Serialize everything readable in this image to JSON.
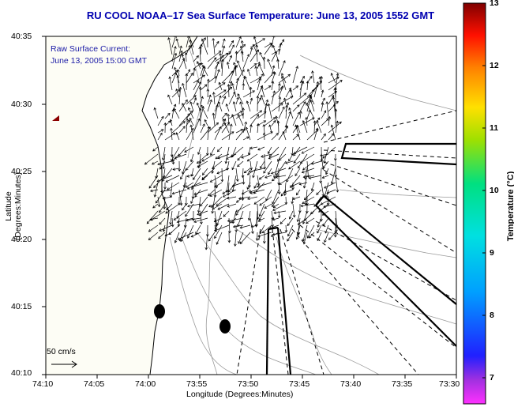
{
  "title": "RU COOL  NOAA–17  Sea Surface Temperature:  June 13, 2005 1552 GMT",
  "annotation": {
    "line1": "Raw Surface Current:",
    "line2": "June 13, 2005 15:00 GMT"
  },
  "axes": {
    "xlabel": "Longitude (Degrees:Minutes)",
    "ylabel": "Latitude (Degrees:Minutes)",
    "x_ticks": [
      "74:10",
      "74:05",
      "74:00",
      "73:55",
      "73:50",
      "73:45",
      "73:40",
      "73:35",
      "73:30"
    ],
    "y_ticks": [
      "40:35",
      "40:30",
      "40:25",
      "40:20",
      "40:15",
      "40:10"
    ]
  },
  "scale_arrow": {
    "label": "50 cm/s"
  },
  "colorbar": {
    "title": "Temperature (°C)",
    "ticks": [
      "13",
      "12",
      "11",
      "10",
      "9",
      "8",
      "7"
    ]
  },
  "colors": {
    "title": "#0000b0",
    "annotation": "#1a1aa6",
    "contour": "#9a9a9a",
    "land": "#fdfdf5"
  }
}
